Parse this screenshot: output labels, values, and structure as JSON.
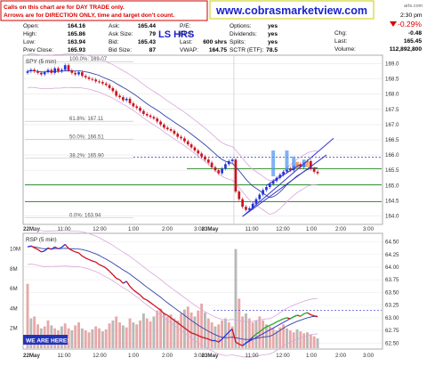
{
  "notice": {
    "line1": "Calls on this chart are for DAY TRADE only.",
    "line2": "Arrows are for DIRECTION ONLY, time and target don't count."
  },
  "site_url": "www.cobrasmarketview.com",
  "watermark": "LS HRS",
  "header_right": {
    "time": "2:30 pm",
    "source": "arts.com",
    "change_pct": "-0.29%"
  },
  "quote": {
    "col1": [
      {
        "label": "Open:",
        "value": "164.16"
      },
      {
        "label": "High:",
        "value": "165.86"
      },
      {
        "label": "Low:",
        "value": "163.94"
      },
      {
        "label": "Prev Close:",
        "value": "165.93"
      }
    ],
    "col2": [
      {
        "label": "Ask:",
        "value": "165.44"
      },
      {
        "label": "Ask Size:",
        "value": "79"
      },
      {
        "label": "Bid:",
        "value": "165.43"
      },
      {
        "label": "Bid Size:",
        "value": "87"
      }
    ],
    "col3": [
      {
        "label": "P/E:",
        "value": ""
      },
      {
        "label": "EPS:",
        "value": ""
      },
      {
        "label": "Last:",
        "value": "600 shrs"
      },
      {
        "label": "VWAP:",
        "value": "164.75"
      }
    ],
    "col4": [
      {
        "label": "Options:",
        "value": "yes"
      },
      {
        "label": "Dividends:",
        "value": "yes"
      },
      {
        "label": "Splits:",
        "value": "yes"
      },
      {
        "label": "SCTR (ETF):",
        "value": "78.5"
      }
    ],
    "col5": [
      {
        "label": "Chg:",
        "value": "-0.48"
      },
      {
        "label": "Last:",
        "value": "165.45"
      },
      {
        "label": "Volume:",
        "value": "112,892,800"
      }
    ]
  },
  "we_are_here": "WE ARE HERE!",
  "colors": {
    "up": "#2233dd",
    "down": "#cc1122",
    "green_line": "#228822",
    "ma": "#3344aa",
    "bband": "#d8a8d8",
    "volume": "#e8a8a8",
    "volume_gray": "#b8b8b8",
    "url": "#1a22cc",
    "accent": "#dd0000"
  },
  "chart_data": [
    {
      "type": "candlestick",
      "title": "SPY (5 min)",
      "ylim": [
        163.75,
        169.25
      ],
      "yticks": [
        "169.0",
        "168.5",
        "168.0",
        "167.5",
        "167.0",
        "166.5",
        "166.0",
        "165.5",
        "165.0",
        "164.5",
        "164.0"
      ],
      "ytick_values": [
        169.0,
        168.5,
        168.0,
        167.5,
        167.0,
        166.5,
        166.0,
        165.5,
        165.0,
        164.5,
        164.0
      ],
      "xticks": [
        "22May",
        "11:00",
        "12:00",
        "1:00",
        "2:00",
        "3:00",
        "23May",
        "11:00",
        "12:00",
        "1:00",
        "2:00",
        "3:00"
      ],
      "fib_levels": [
        {
          "label": "100.0%: 169.07",
          "value": 169.07
        },
        {
          "label": "61.8%: 167.11",
          "value": 167.11
        },
        {
          "label": "50.0%: 166.51",
          "value": 166.51
        },
        {
          "label": "38.2%: 165.90",
          "value": 165.9
        },
        {
          "label": "0.0%: 163.94",
          "value": 163.94
        }
      ],
      "horizontal_levels": [
        165.93,
        165.55,
        165.02,
        164.47
      ],
      "close_series": [
        168.75,
        168.8,
        168.75,
        168.7,
        168.65,
        168.72,
        168.8,
        168.7,
        168.85,
        168.75,
        168.8,
        168.95,
        168.78,
        168.7,
        168.65,
        168.72,
        168.6,
        168.55,
        168.5,
        168.48,
        168.42,
        168.4,
        168.35,
        168.3,
        168.2,
        168.1,
        167.95,
        167.9,
        167.8,
        167.85,
        167.7,
        167.6,
        167.55,
        167.45,
        167.35,
        167.3,
        167.25,
        167.2,
        167.1,
        167.0,
        166.9,
        166.85,
        166.8,
        166.7,
        166.6,
        166.55,
        166.45,
        166.35,
        166.25,
        166.15,
        166.05,
        165.95,
        165.85,
        165.75,
        165.6,
        165.5,
        165.4,
        165.55,
        165.7,
        165.8,
        165.85,
        164.8,
        164.55,
        164.3,
        164.2,
        164.25,
        164.4,
        164.55,
        164.7,
        164.85,
        164.95,
        165.05,
        165.15,
        165.25,
        165.35,
        165.45,
        165.55,
        165.5,
        165.65,
        165.7,
        165.6,
        165.75,
        165.8,
        165.55,
        165.45,
        165.4
      ]
    },
    {
      "type": "line",
      "title": "RSP (5 min)",
      "ylim": [
        62.4,
        64.65
      ],
      "yticks": [
        "64.50",
        "64.25",
        "64.00",
        "63.75",
        "63.50",
        "63.25",
        "63.00",
        "62.75",
        "62.50"
      ],
      "ytick_values": [
        64.5,
        64.25,
        64.0,
        63.75,
        63.5,
        63.25,
        63.0,
        62.75,
        62.5
      ],
      "volume_ticks": [
        "10M",
        "8M",
        "6M",
        "4M",
        "2M"
      ],
      "volume_tick_values": [
        10,
        8,
        6,
        4,
        2
      ],
      "xticks": [
        "22May",
        "11:00",
        "12:00",
        "1:00",
        "2:00",
        "3:00",
        "23May",
        "11:00",
        "12:00",
        "1:00",
        "2:00",
        "3:00"
      ],
      "horizontal_levels": [
        63.15
      ],
      "price_series": [
        64.4,
        64.42,
        64.38,
        64.35,
        64.3,
        64.32,
        64.38,
        64.35,
        64.4,
        64.36,
        64.39,
        64.45,
        64.37,
        64.33,
        64.3,
        64.28,
        64.22,
        64.18,
        64.15,
        64.12,
        64.1,
        64.05,
        64.02,
        63.98,
        63.92,
        63.85,
        63.78,
        63.75,
        63.68,
        63.72,
        63.62,
        63.55,
        63.5,
        63.45,
        63.38,
        63.35,
        63.3,
        63.25,
        63.2,
        63.15,
        63.08,
        63.05,
        63.0,
        62.95,
        62.9,
        62.85,
        62.8,
        62.75,
        62.7,
        62.68,
        62.65,
        62.62,
        62.6,
        62.58,
        62.55,
        62.55,
        62.52,
        62.58,
        62.65,
        62.72,
        62.78,
        62.52,
        62.48,
        62.45,
        62.5,
        62.55,
        62.62,
        62.68,
        62.72,
        62.78,
        62.82,
        62.85,
        62.88,
        62.92,
        62.95,
        62.98,
        63.0,
        62.98,
        63.02,
        63.05,
        63.03,
        63.08,
        63.1,
        63.06,
        63.04,
        63.02
      ],
      "volume_series_millions": [
        6.5,
        3.0,
        3.2,
        2.4,
        2.0,
        2.2,
        2.8,
        2.3,
        2.0,
        1.8,
        2.2,
        2.5,
        2.0,
        1.8,
        2.3,
        2.6,
        2.0,
        1.8,
        1.6,
        1.9,
        2.2,
        2.0,
        1.7,
        1.9,
        2.5,
        2.8,
        3.2,
        2.6,
        2.3,
        2.1,
        3.0,
        2.6,
        2.4,
        2.8,
        3.5,
        3.0,
        2.7,
        3.2,
        3.8,
        4.0,
        3.6,
        3.2,
        3.4,
        3.0,
        2.8,
        3.5,
        3.9,
        4.2,
        3.6,
        3.2,
        3.8,
        4.5,
        3.6,
        3.0,
        2.6,
        2.2,
        2.4,
        2.8,
        3.0,
        2.6,
        2.2,
        10.0,
        5.0,
        3.2,
        3.5,
        3.0,
        2.6,
        2.8,
        3.2,
        2.8,
        2.4,
        2.2,
        2.0,
        1.8,
        2.1,
        2.4,
        2.0,
        1.8,
        1.6,
        1.9,
        1.7,
        1.5,
        1.6,
        1.4,
        1.2,
        1.0
      ]
    }
  ]
}
